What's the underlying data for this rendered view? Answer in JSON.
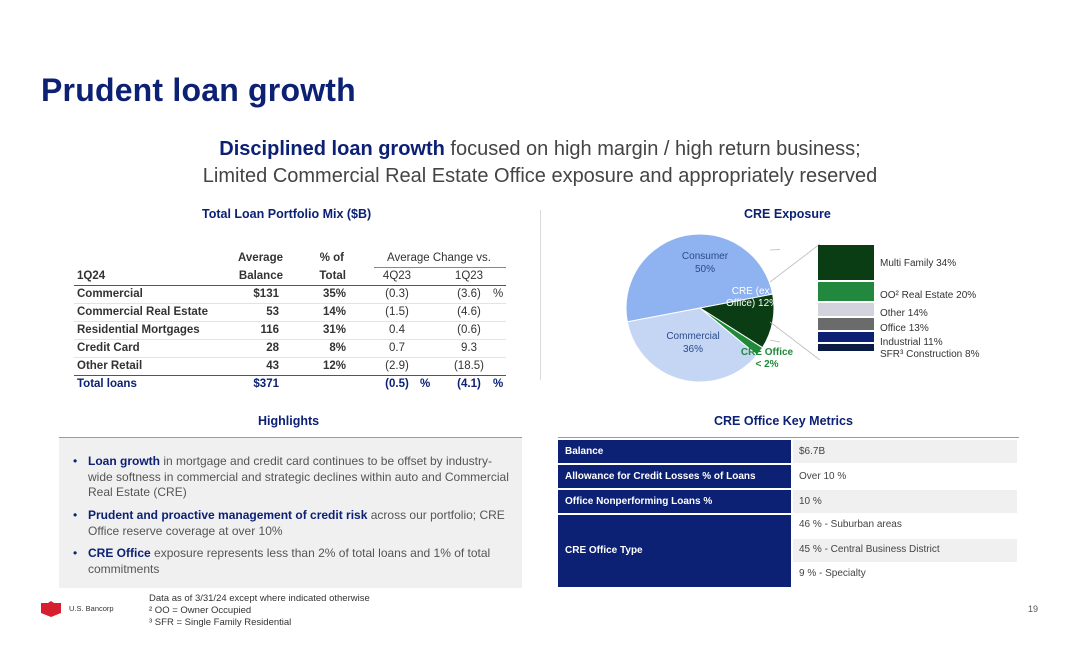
{
  "title": "Prudent loan growth",
  "subtitle": {
    "line1_bold": "Disciplined loan growth",
    "line1_rest": " focused on high margin / high return business;",
    "line2": "Limited Commercial Real Estate Office exposure and appropriately reserved"
  },
  "loan_table": {
    "title": "Total Loan Portfolio Mix ($B)",
    "header_avg": "Average",
    "header_pct": "% of",
    "header_change": "Average Change vs.",
    "header_period": "1Q24",
    "header_balance": "Balance",
    "header_total": "Total",
    "header_4q": "4Q23",
    "header_1q": "1Q23",
    "pct_sign": "%",
    "rows": [
      {
        "label": "Commercial",
        "balance": "$131",
        "pct": "35%",
        "q4": "(0.3)",
        "q1": "(3.6)"
      },
      {
        "label": "Commercial Real Estate",
        "balance": "53",
        "pct": "14%",
        "q4": "(1.5)",
        "q1": "(4.6)"
      },
      {
        "label": "Residential Mortgages",
        "balance": "116",
        "pct": "31%",
        "q4": "0.4",
        "q1": "(0.6)"
      },
      {
        "label": "Credit Card",
        "balance": "28",
        "pct": "8%",
        "q4": "0.7",
        "q1": "9.3"
      },
      {
        "label": "Other Retail",
        "balance": "43",
        "pct": "12%",
        "q4": "(2.9)",
        "q1": "(18.5)"
      }
    ],
    "total": {
      "label": "Total loans",
      "balance": "$371",
      "q4": "(0.5)",
      "q1": "(4.1)"
    }
  },
  "cre": {
    "title": "CRE Exposure",
    "pie": [
      {
        "name": "Consumer",
        "pct": "50%",
        "value": 50,
        "color": "#8fb2f0"
      },
      {
        "name": "CRE (ex. Office)",
        "pct": "12%",
        "value": 12,
        "color": "#0b3d14"
      },
      {
        "name": "CRE Office",
        "pct": "< 2%",
        "value": 2,
        "color": "#1f8a3a"
      },
      {
        "name": "Commercial",
        "pct": "36%",
        "value": 36,
        "color": "#c5d6f5"
      }
    ],
    "labels": {
      "consumer": "Consumer",
      "consumer_pct": "50%",
      "cre_ex_l1": "CRE (ex.",
      "cre_ex_l2": "Office) 12%",
      "commercial": "Commercial",
      "commercial_pct": "36%",
      "cre_office": "CRE Office",
      "cre_office_pct": "< 2%"
    },
    "breakdown": [
      {
        "label": "Multi Family 34%",
        "value": 34,
        "color": "#0b3d14"
      },
      {
        "label": "OO² Real Estate 20%",
        "value": 20,
        "color": "#22883d"
      },
      {
        "label": "Other 14%",
        "value": 14,
        "color": "#d3d3de"
      },
      {
        "label": "Office 13%",
        "value": 13,
        "color": "#6b6b6b"
      },
      {
        "label": "Industrial 11%",
        "value": 11,
        "color": "#0c2074"
      },
      {
        "label": "SFR³ Construction 8%",
        "value": 8,
        "color": "#0a1b44"
      }
    ]
  },
  "highlights": {
    "title": "Highlights",
    "items": [
      {
        "bold": "Loan growth",
        "text": " in mortgage and credit card continues to be offset by industry-wide softness in commercial and strategic declines within auto and Commercial Real Estate  (CRE)"
      },
      {
        "bold": "Prudent and proactive management of credit risk",
        "text": " across our portfolio; CRE Office reserve coverage at over 10%"
      },
      {
        "bold": "CRE Office",
        "text": " exposure represents less than 2% of total loans and 1% of total commitments"
      }
    ]
  },
  "metrics": {
    "title": "CRE Office Key Metrics",
    "rows": [
      {
        "label": "Balance",
        "value": "$6.7B"
      },
      {
        "label": "Allowance for Credit Losses % of Loans",
        "value": "Over 10 %"
      },
      {
        "label": "Office Nonperforming Loans %",
        "value": "10 %"
      }
    ],
    "type_label": "CRE Office Type",
    "type_values": [
      "46 % - Suburban areas",
      "45 % - Central Business District",
      "9 % - Specialty"
    ]
  },
  "footer": {
    "note1": "Data as of 3/31/24 except where indicated otherwise",
    "note2": "² OO = Owner Occupied",
    "note3": "³ SFR = Single Family Residential",
    "brand": "U.S. Bancorp",
    "page": "19"
  }
}
